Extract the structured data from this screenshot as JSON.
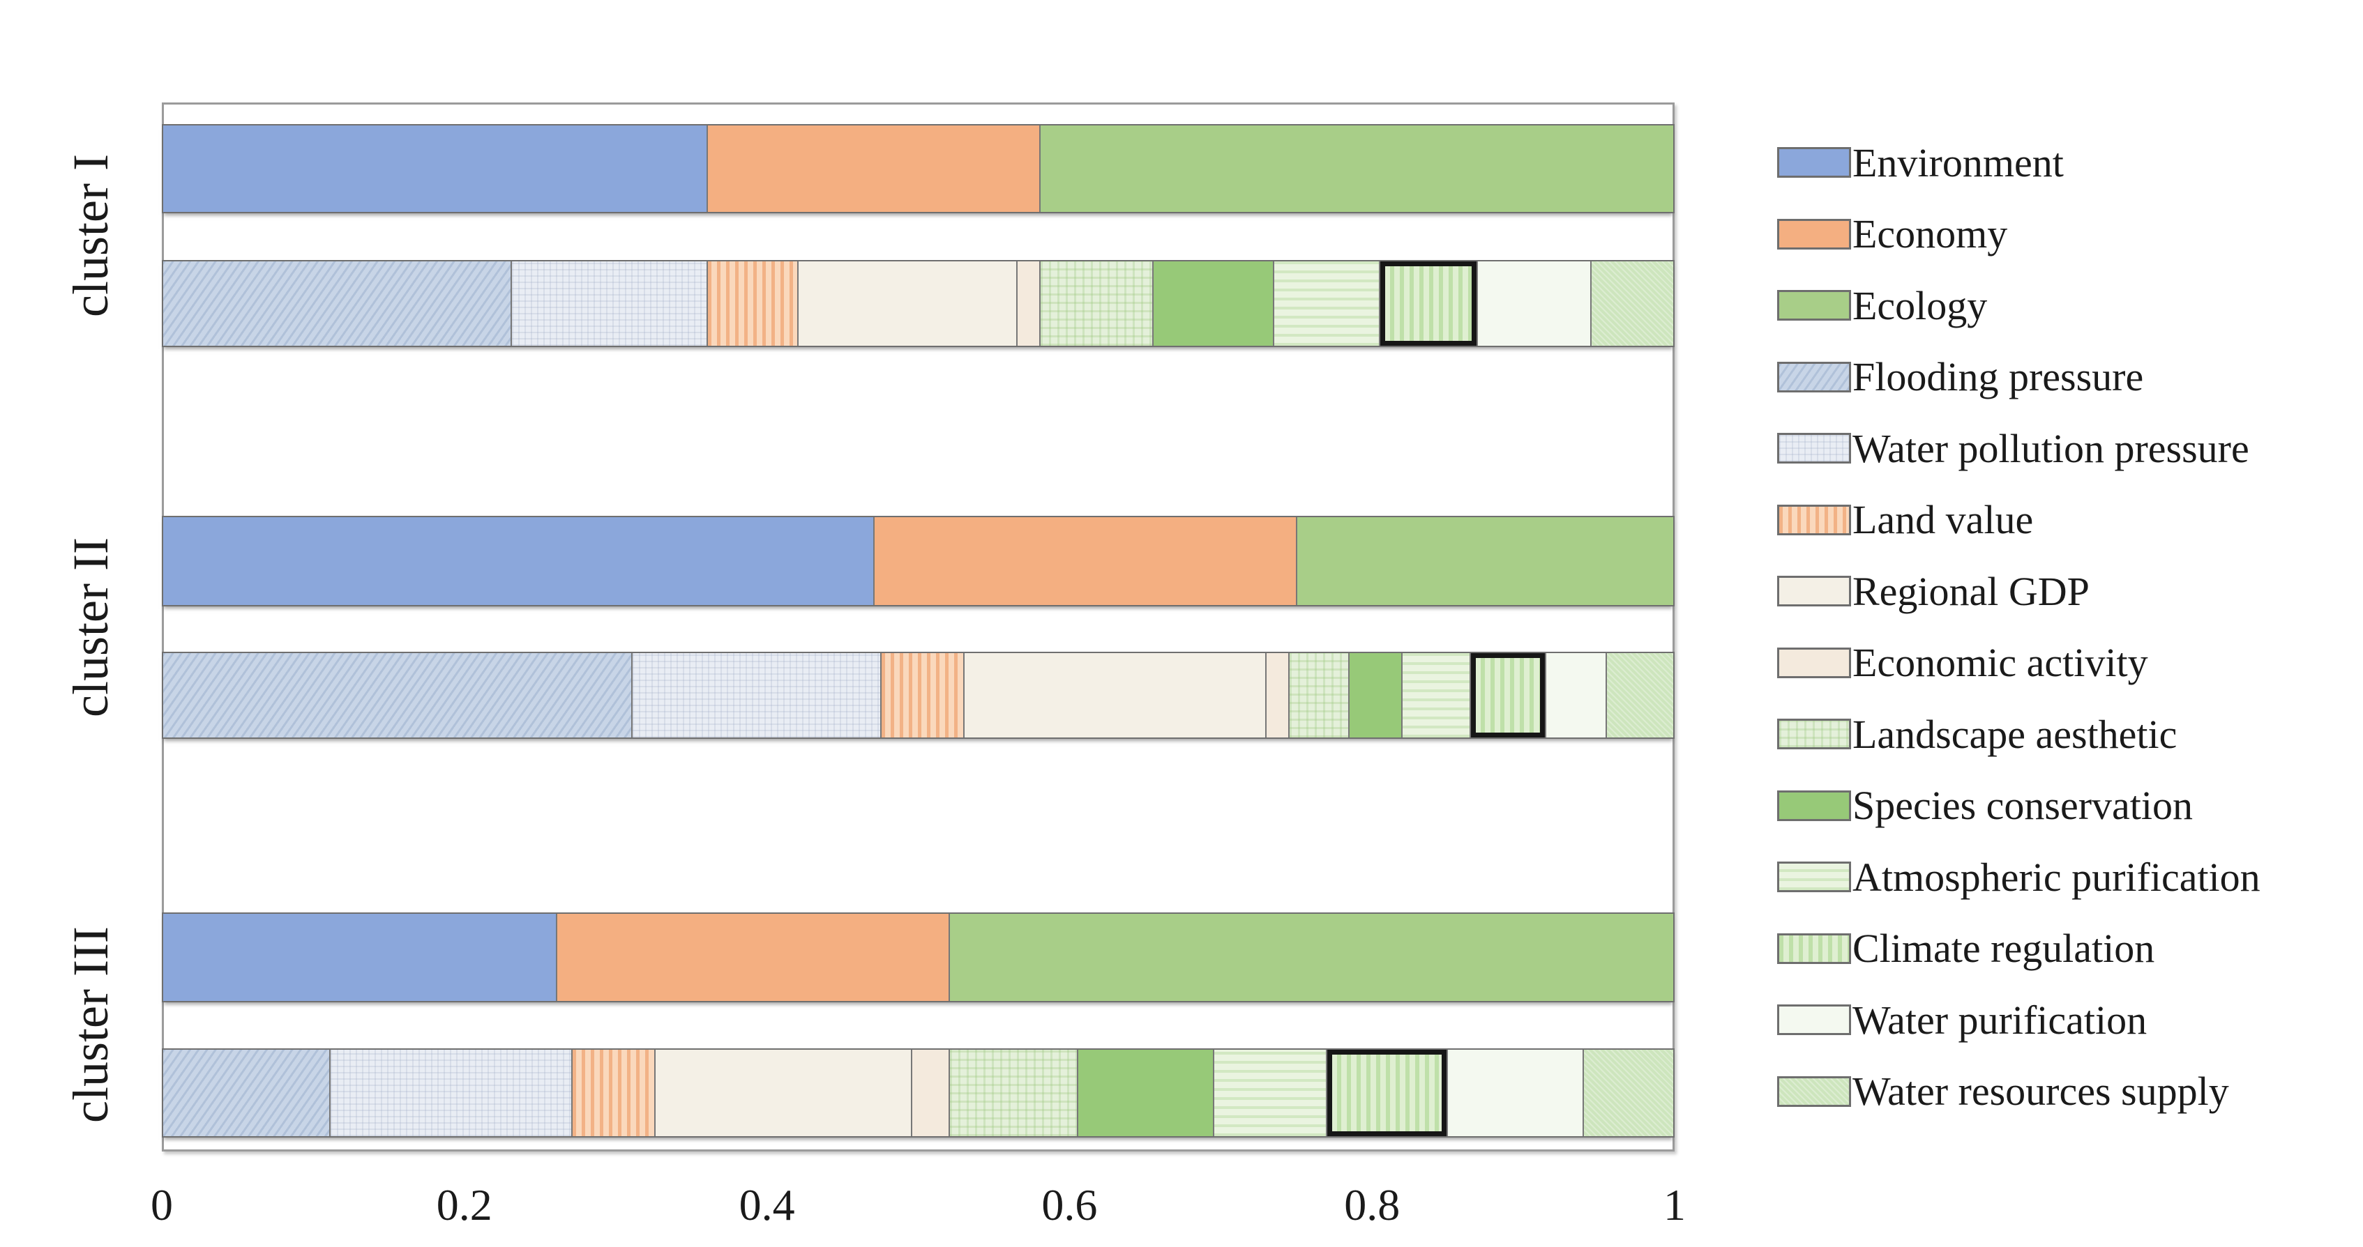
{
  "figure": {
    "background": "#ffffff"
  },
  "legend": {
    "position": "right",
    "items": [
      {
        "id": "environment",
        "label": "Environment"
      },
      {
        "id": "economy",
        "label": "Economy"
      },
      {
        "id": "ecology",
        "label": "Ecology"
      },
      {
        "id": "flooding_pressure",
        "label": "Flooding pressure"
      },
      {
        "id": "water_pollution_pressure",
        "label": "Water pollution pressure"
      },
      {
        "id": "land_value",
        "label": "Land value"
      },
      {
        "id": "regional_gdp",
        "label": "Regional GDP"
      },
      {
        "id": "economic_activity",
        "label": "Economic activity"
      },
      {
        "id": "landscape_aesthetic",
        "label": "Landscape aesthetic"
      },
      {
        "id": "species_conservation",
        "label": "Species conservation"
      },
      {
        "id": "atmospheric_purification",
        "label": "Atmospheric purification"
      },
      {
        "id": "climate_regulation",
        "label": "Climate regulation"
      },
      {
        "id": "water_purification",
        "label": "Water purification"
      },
      {
        "id": "water_resources_supply",
        "label": "Water resources supply"
      }
    ]
  },
  "colors": {
    "environment": "#8BA7DB",
    "economy": "#F4AF81",
    "ecology": "#A8CE88",
    "flooding_pressure": "#C8D5E7",
    "water_pollution_pressure": "#E9EDF4",
    "land_value": "#F6C49E",
    "regional_gdp": "#F4F0E6",
    "economic_activity": "#F4EADD",
    "landscape_aesthetic": "#E4F0DA",
    "species_conservation": "#97C978",
    "atmospheric_purification": "#DEEDD1",
    "climate_regulation": "#CFE7BD",
    "water_purification": "#F4F9F0",
    "water_resources_supply": "#CDE5BD",
    "highlight_border": "#161616"
  },
  "chart_data": {
    "type": "bar",
    "orientation": "horizontal",
    "stacked": true,
    "title": "",
    "xlabel": "",
    "ylabel": "",
    "xlim": [
      0,
      1
    ],
    "x_tick_labels": [
      "0",
      "0.2",
      "0.4",
      "0.6",
      "0.8",
      "1"
    ],
    "x_tick_values": [
      0,
      0.2,
      0.4,
      0.6,
      0.8,
      1
    ],
    "grid": false,
    "legend_position": "right",
    "highlight_series": "climate_regulation",
    "aggregate_order": [
      "environment",
      "economy",
      "ecology"
    ],
    "detail_order": [
      "flooding_pressure",
      "water_pollution_pressure",
      "land_value",
      "regional_gdp",
      "economic_activity",
      "landscape_aesthetic",
      "species_conservation",
      "atmospheric_purification",
      "climate_regulation",
      "water_purification",
      "water_resources_supply"
    ],
    "clusters": [
      {
        "label": "cluster I",
        "aggregate": {
          "environment": 0.36,
          "economy": 0.22,
          "ecology": 0.42
        },
        "detail": {
          "flooding_pressure": 0.23,
          "water_pollution_pressure": 0.13,
          "land_value": 0.06,
          "regional_gdp": 0.145,
          "economic_activity": 0.015,
          "landscape_aesthetic": 0.075,
          "species_conservation": 0.08,
          "atmospheric_purification": 0.07,
          "climate_regulation": 0.065,
          "water_purification": 0.075,
          "water_resources_supply": 0.055
        }
      },
      {
        "label": "cluster II",
        "aggregate": {
          "environment": 0.47,
          "economy": 0.28,
          "ecology": 0.25
        },
        "detail": {
          "flooding_pressure": 0.31,
          "water_pollution_pressure": 0.165,
          "land_value": 0.055,
          "regional_gdp": 0.2,
          "economic_activity": 0.015,
          "landscape_aesthetic": 0.04,
          "species_conservation": 0.035,
          "atmospheric_purification": 0.045,
          "climate_regulation": 0.05,
          "water_purification": 0.04,
          "water_resources_supply": 0.045
        }
      },
      {
        "label": "cluster III",
        "aggregate": {
          "environment": 0.26,
          "economy": 0.26,
          "ecology": 0.48
        },
        "detail": {
          "flooding_pressure": 0.11,
          "water_pollution_pressure": 0.16,
          "land_value": 0.055,
          "regional_gdp": 0.17,
          "economic_activity": 0.025,
          "landscape_aesthetic": 0.085,
          "species_conservation": 0.09,
          "atmospheric_purification": 0.075,
          "climate_regulation": 0.08,
          "water_purification": 0.09,
          "water_resources_supply": 0.06
        }
      }
    ]
  }
}
